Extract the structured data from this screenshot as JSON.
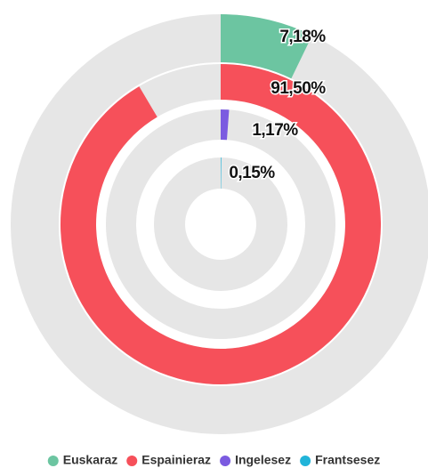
{
  "chart_data": {
    "type": "radial-bar",
    "categories": [
      "Euskaraz",
      "Espainieraz",
      "Ingelesez",
      "Frantsesez"
    ],
    "values": [
      7.18,
      91.5,
      1.17,
      0.15
    ],
    "value_labels": [
      "7,18%",
      "91,50%",
      "1,17%",
      "0,15%"
    ],
    "colors": [
      "#6cc5a1",
      "#f6505a",
      "#7b5be0",
      "#21b4d9"
    ],
    "ylim": [
      0,
      100
    ],
    "legend": "bottom"
  }
}
